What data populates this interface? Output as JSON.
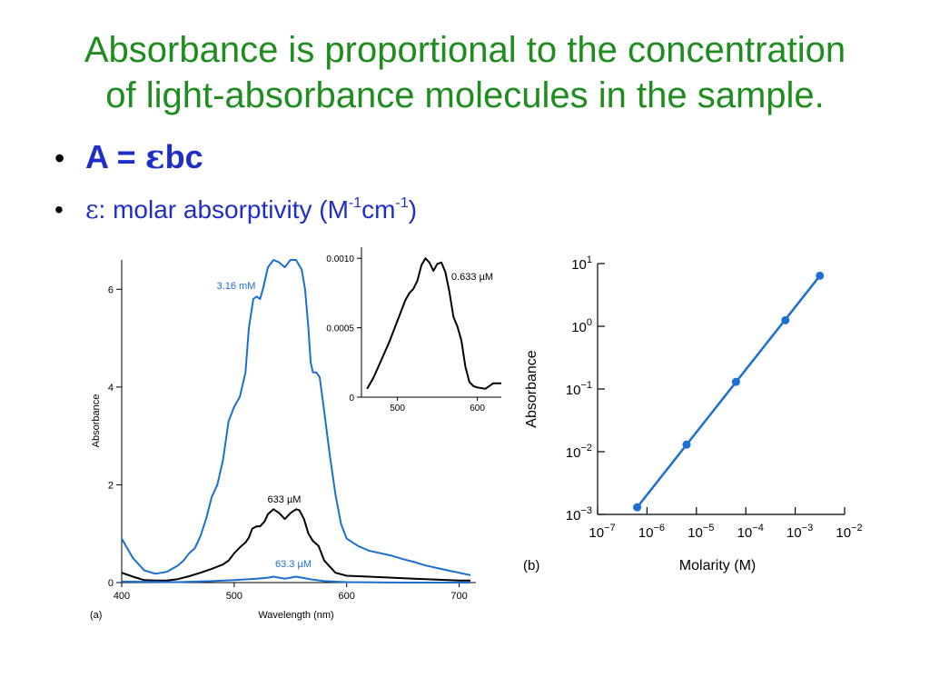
{
  "slide": {
    "title_line1": "Absorbance is proportional to the concentration",
    "title_line2": "of light-absorbance molecules in the sample.",
    "bullet1": {
      "a": "A = ",
      "eps": "ε",
      "rest": "bc"
    },
    "bullet2": {
      "eps": "ε",
      "text": ": molar absorptivity (M",
      "sup1": "-1",
      "mid": "cm",
      "sup2": "-1",
      "end": ")"
    }
  },
  "colors": {
    "title": "#1e8c1e",
    "bullets": "#1f2ec8",
    "blue_curve": "#1a6fd0",
    "black_curve": "#000000"
  },
  "chart_data": [
    {
      "type": "line",
      "panel_label": "(a)",
      "xlabel": "Wavelength (nm)",
      "ylabel": "Absorbance",
      "xlim": [
        400,
        710
      ],
      "ylim": [
        0,
        6.6
      ],
      "x_ticks": [
        "400",
        "500",
        "600",
        "700"
      ],
      "y_ticks": [
        "0",
        "2",
        "4",
        "6"
      ],
      "series": [
        {
          "name": "3.16 mM",
          "color": "#1a6fd0",
          "points": [
            [
              400,
              0.9
            ],
            [
              410,
              0.5
            ],
            [
              420,
              0.25
            ],
            [
              430,
              0.18
            ],
            [
              440,
              0.22
            ],
            [
              450,
              0.35
            ],
            [
              455,
              0.45
            ],
            [
              460,
              0.6
            ],
            [
              465,
              0.7
            ],
            [
              470,
              0.95
            ],
            [
              475,
              1.3
            ],
            [
              480,
              1.75
            ],
            [
              485,
              2.0
            ],
            [
              490,
              2.5
            ],
            [
              495,
              3.3
            ],
            [
              500,
              3.6
            ],
            [
              505,
              3.8
            ],
            [
              510,
              4.3
            ],
            [
              513,
              5.2
            ],
            [
              517,
              5.8
            ],
            [
              520,
              5.85
            ],
            [
              523,
              5.8
            ],
            [
              526,
              6.05
            ],
            [
              530,
              6.45
            ],
            [
              535,
              6.6
            ],
            [
              540,
              6.55
            ],
            [
              545,
              6.45
            ],
            [
              550,
              6.6
            ],
            [
              555,
              6.6
            ],
            [
              560,
              6.4
            ],
            [
              563,
              6.0
            ],
            [
              566,
              5.2
            ],
            [
              568,
              4.5
            ],
            [
              570,
              4.3
            ],
            [
              573,
              4.3
            ],
            [
              576,
              4.2
            ],
            [
              580,
              3.5
            ],
            [
              585,
              2.6
            ],
            [
              590,
              1.8
            ],
            [
              595,
              1.2
            ],
            [
              600,
              0.9
            ],
            [
              610,
              0.75
            ],
            [
              620,
              0.65
            ],
            [
              630,
              0.6
            ],
            [
              640,
              0.55
            ],
            [
              650,
              0.48
            ],
            [
              660,
              0.42
            ],
            [
              670,
              0.35
            ],
            [
              680,
              0.3
            ],
            [
              690,
              0.25
            ],
            [
              700,
              0.2
            ],
            [
              710,
              0.15
            ]
          ]
        },
        {
          "name": "633 µM",
          "color": "#000000",
          "points": [
            [
              400,
              0.2
            ],
            [
              410,
              0.12
            ],
            [
              420,
              0.05
            ],
            [
              430,
              0.04
            ],
            [
              440,
              0.04
            ],
            [
              450,
              0.07
            ],
            [
              460,
              0.13
            ],
            [
              470,
              0.2
            ],
            [
              480,
              0.28
            ],
            [
              490,
              0.37
            ],
            [
              495,
              0.45
            ],
            [
              500,
              0.6
            ],
            [
              505,
              0.72
            ],
            [
              510,
              0.82
            ],
            [
              513,
              0.92
            ],
            [
              516,
              1.1
            ],
            [
              520,
              1.15
            ],
            [
              523,
              1.15
            ],
            [
              527,
              1.25
            ],
            [
              530,
              1.4
            ],
            [
              535,
              1.5
            ],
            [
              540,
              1.42
            ],
            [
              545,
              1.3
            ],
            [
              550,
              1.42
            ],
            [
              555,
              1.5
            ],
            [
              558,
              1.48
            ],
            [
              562,
              1.3
            ],
            [
              566,
              1.0
            ],
            [
              570,
              0.85
            ],
            [
              575,
              0.75
            ],
            [
              580,
              0.45
            ],
            [
              590,
              0.2
            ],
            [
              600,
              0.14
            ],
            [
              620,
              0.12
            ],
            [
              640,
              0.1
            ],
            [
              660,
              0.08
            ],
            [
              680,
              0.06
            ],
            [
              700,
              0.04
            ],
            [
              710,
              0.04
            ]
          ]
        },
        {
          "name": "63.3 µM",
          "color": "#1a6fd0",
          "points": [
            [
              400,
              0.02
            ],
            [
              450,
              0.01
            ],
            [
              480,
              0.03
            ],
            [
              500,
              0.05
            ],
            [
              520,
              0.08
            ],
            [
              530,
              0.1
            ],
            [
              535,
              0.12
            ],
            [
              540,
              0.1
            ],
            [
              545,
              0.08
            ],
            [
              550,
              0.1
            ],
            [
              555,
              0.12
            ],
            [
              560,
              0.1
            ],
            [
              570,
              0.06
            ],
            [
              580,
              0.03
            ],
            [
              600,
              0.01
            ],
            [
              650,
              0.0
            ],
            [
              710,
              0.0
            ]
          ]
        }
      ]
    },
    {
      "type": "line",
      "inset": true,
      "xlim": [
        455,
        630
      ],
      "ylim": [
        0,
        0.00108
      ],
      "x_ticks": [
        "500",
        "600"
      ],
      "y_ticks": [
        "0",
        "0.0005",
        "0.0010"
      ],
      "series": [
        {
          "name": "0.633 µM",
          "color": "#000000",
          "points": [
            [
              462,
              6e-05
            ],
            [
              470,
              0.00014
            ],
            [
              480,
              0.00027
            ],
            [
              490,
              0.0004
            ],
            [
              500,
              0.00055
            ],
            [
              510,
              0.0007
            ],
            [
              515,
              0.00075
            ],
            [
              520,
              0.00078
            ],
            [
              525,
              0.00084
            ],
            [
              530,
              0.00095
            ],
            [
              535,
              0.001
            ],
            [
              540,
              0.00097
            ],
            [
              545,
              0.00091
            ],
            [
              550,
              0.00096
            ],
            [
              555,
              0.00097
            ],
            [
              560,
              0.0009
            ],
            [
              565,
              0.00076
            ],
            [
              570,
              0.00058
            ],
            [
              575,
              0.00051
            ],
            [
              580,
              0.00041
            ],
            [
              585,
              0.00022
            ],
            [
              590,
              0.00011
            ],
            [
              595,
              8e-05
            ],
            [
              600,
              7e-05
            ],
            [
              610,
              6e-05
            ],
            [
              620,
              0.0001
            ],
            [
              630,
              0.0001
            ]
          ]
        }
      ]
    },
    {
      "type": "scatter",
      "panel_label": "(b)",
      "xlabel": "Molarity (M)",
      "ylabel": "Absorbance",
      "xscale": "log",
      "yscale": "log",
      "xlim": [
        1e-07,
        0.01
      ],
      "ylim": [
        0.001,
        10
      ],
      "x_ticks": [
        {
          "base": "10",
          "exp": "−7"
        },
        {
          "base": "10",
          "exp": "−6"
        },
        {
          "base": "10",
          "exp": "−5"
        },
        {
          "base": "10",
          "exp": "−4"
        },
        {
          "base": "10",
          "exp": "−3"
        },
        {
          "base": "10",
          "exp": "−2"
        }
      ],
      "y_ticks": [
        {
          "base": "10",
          "exp": "−3"
        },
        {
          "base": "10",
          "exp": "−2"
        },
        {
          "base": "10",
          "exp": "−1"
        },
        {
          "base": "10",
          "exp": "0"
        },
        {
          "base": "10",
          "exp": "1"
        }
      ],
      "points": [
        [
          6.33e-07,
          0.0013
        ],
        [
          6.33e-06,
          0.013
        ],
        [
          6.33e-05,
          0.13
        ],
        [
          0.000633,
          1.25
        ],
        [
          0.00316,
          6.4
        ]
      ],
      "color": "#1a6fd0"
    }
  ]
}
